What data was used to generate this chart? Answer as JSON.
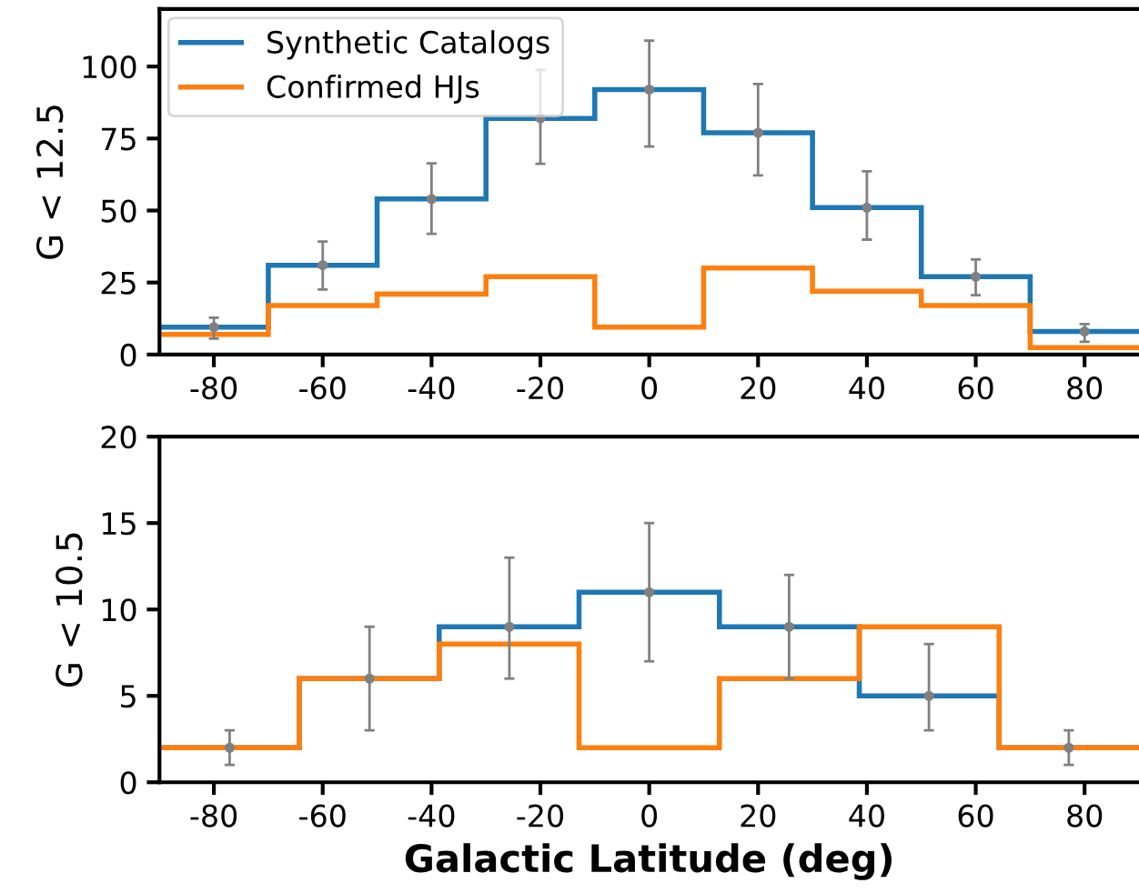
{
  "chart_data": [
    {
      "type": "histogram",
      "ylabel": "G < 12.5",
      "bins": [
        -90,
        -70,
        -50,
        -30,
        -10,
        10,
        30,
        50,
        70,
        90
      ],
      "xlim": [
        -90,
        90
      ],
      "xticks": [
        -80,
        -60,
        -40,
        -20,
        0,
        20,
        40,
        60,
        80
      ],
      "ylim": [
        0,
        120
      ],
      "yticks": [
        0,
        25,
        50,
        75,
        100
      ],
      "legend": "top left",
      "series": [
        {
          "name": "Synthetic Catalogs",
          "color": "#1f77b4",
          "values": [
            9.5,
            31,
            54,
            82,
            92,
            77,
            51,
            27,
            8
          ]
        },
        {
          "name": "Confirmed HJs",
          "color": "#ff7f0e",
          "values": [
            7,
            17,
            21,
            27,
            9.5,
            30,
            22,
            17,
            2.4
          ]
        },
        {
          "type": "scatter",
          "marker": "circle",
          "color": "#808080",
          "x": [
            -80,
            -60,
            -40,
            -20,
            0,
            20,
            40,
            60,
            80
          ],
          "values": [
            9.5,
            31,
            54,
            82,
            92,
            77,
            51,
            27,
            8
          ],
          "errors": [
            [
              5.5,
              12.8
            ],
            [
              22.6,
              39.2
            ],
            [
              41.9,
              66.4
            ],
            [
              66.2,
              98.8
            ],
            [
              72.2,
              109
            ],
            [
              62.2,
              93.9
            ],
            [
              39.9,
              63.6
            ],
            [
              20.6,
              33
            ],
            [
              4.4,
              10.6
            ]
          ]
        }
      ]
    },
    {
      "type": "histogram",
      "ylabel": "G < 10.5",
      "xlabel": "Galactic Latitude (deg)",
      "bins": [
        -90,
        -64.3,
        -38.6,
        -12.9,
        12.9,
        38.6,
        64.3,
        90
      ],
      "xlim": [
        -90,
        90
      ],
      "xticks": [
        -80,
        -60,
        -40,
        -20,
        0,
        20,
        40,
        60,
        80
      ],
      "ylim": [
        0,
        20
      ],
      "yticks": [
        0,
        5,
        10,
        15,
        20
      ],
      "series": [
        {
          "color": "#1f77b4",
          "values": [
            2,
            6,
            9,
            11,
            9,
            5,
            2
          ]
        },
        {
          "color": "#ff7f0e",
          "values": [
            2,
            6,
            8,
            2,
            6,
            9,
            2
          ]
        },
        {
          "type": "scatter",
          "marker": "circle",
          "color": "#808080",
          "x": [
            -77.1,
            -51.4,
            -25.7,
            0,
            25.7,
            51.4,
            77.1
          ],
          "values": [
            2,
            6,
            9,
            11,
            9,
            5,
            2
          ],
          "errors": [
            [
              1,
              3
            ],
            [
              3,
              9
            ],
            [
              6,
              13
            ],
            [
              7,
              15
            ],
            [
              6,
              12
            ],
            [
              3,
              8
            ],
            [
              1,
              3
            ]
          ]
        }
      ]
    }
  ]
}
